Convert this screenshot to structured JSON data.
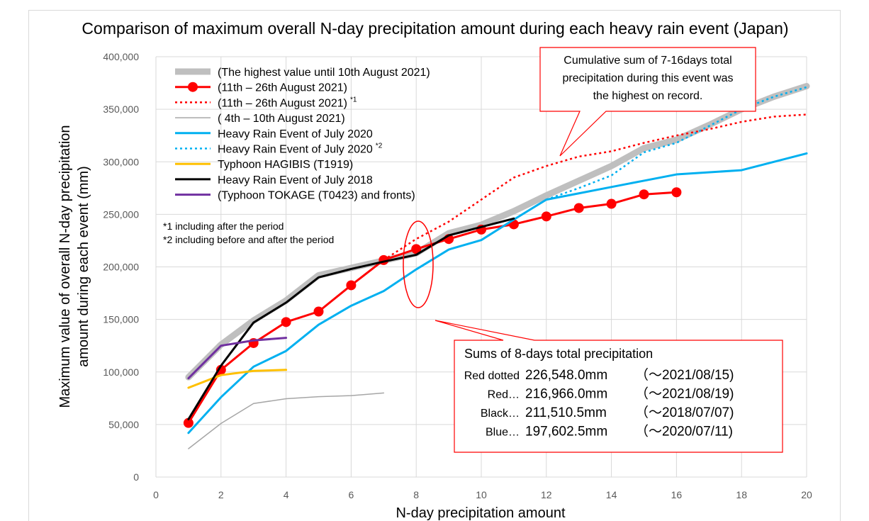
{
  "chart_data": {
    "type": "line",
    "title": "Comparison of maximum overall N-day precipitation amount during each heavy rain event (Japan)",
    "xlabel": "N-day precipitation amount",
    "ylabel_line1": "Maximum value of overall N-day precipitation",
    "ylabel_line2": "amount during each event (mm)",
    "xlim": [
      0,
      20
    ],
    "ylim": [
      0,
      400000
    ],
    "xticks": [
      0,
      2,
      4,
      6,
      8,
      10,
      12,
      14,
      16,
      18,
      20
    ],
    "yticks": [
      0,
      50000,
      100000,
      150000,
      200000,
      250000,
      300000,
      350000,
      400000
    ],
    "ytick_labels": [
      "0",
      "50,000",
      "100,000",
      "150,000",
      "200,000",
      "250,000",
      "300,000",
      "350,000",
      "400,000"
    ],
    "grid": true,
    "legend_position": "top-left",
    "series": [
      {
        "name": "(The highest value until 10th August 2021)",
        "color": "#bfbfbf",
        "style": "thick",
        "x": [
          1,
          2,
          3,
          4,
          5,
          6,
          7,
          8,
          9,
          10,
          11,
          12,
          13,
          14,
          15,
          16,
          17,
          18,
          19,
          20
        ],
        "y": [
          95000,
          126000,
          149000,
          168000,
          192000,
          199000,
          206000,
          213000,
          232000,
          240000,
          253000,
          268000,
          282000,
          296000,
          313000,
          321000,
          335000,
          350000,
          362000,
          372000
        ]
      },
      {
        "name": "(11th – 26th August 2021)",
        "color": "#ff0000",
        "style": "marker",
        "x": [
          1,
          2,
          3,
          4,
          5,
          6,
          7,
          8,
          9,
          10,
          11,
          12,
          13,
          14,
          15,
          16
        ],
        "y": [
          51500,
          102000,
          127500,
          147500,
          157500,
          182500,
          206500,
          216966,
          226500,
          235500,
          240500,
          248000,
          256000,
          260000,
          269000,
          271000
        ]
      },
      {
        "name": "(11th – 26th August 2021)",
        "sup": "*1",
        "color": "#ff0000",
        "style": "dotted",
        "x": [
          7,
          8,
          9,
          10,
          11,
          12,
          13,
          14,
          15,
          16,
          17,
          18,
          19,
          20
        ],
        "y": [
          206500,
          226548,
          243000,
          264000,
          285000,
          296000,
          305000,
          310000,
          318000,
          325000,
          331000,
          338000,
          343000,
          345000
        ]
      },
      {
        "name": "( 4th – 10th August 2021)",
        "color": "#a6a6a6",
        "style": "thin",
        "x": [
          1,
          2,
          3,
          4,
          5,
          6,
          7
        ],
        "y": [
          27000,
          51000,
          70000,
          74500,
          76500,
          77500,
          80000
        ]
      },
      {
        "name": "Heavy Rain Event of July 2020",
        "color": "#00b0f0",
        "style": "solid",
        "x": [
          1,
          2,
          3,
          4,
          5,
          6,
          7,
          8,
          9,
          10,
          11,
          12,
          13,
          14,
          15,
          16,
          18,
          20
        ],
        "y": [
          42000,
          76000,
          105000,
          120000,
          145000,
          163000,
          177000,
          197602.5,
          216500,
          225500,
          245000,
          264000,
          270000,
          276000,
          282000,
          288000,
          292000,
          308000
        ]
      },
      {
        "name": "Heavy Rain Event of July 2020",
        "sup": "*2",
        "color": "#00b0f0",
        "style": "dotted",
        "x": [
          12,
          13,
          14,
          15,
          16,
          17,
          18,
          19,
          20
        ],
        "y": [
          264000,
          275000,
          287000,
          309000,
          318000,
          334000,
          350000,
          362000,
          371000
        ]
      },
      {
        "name": "Typhoon HAGIBIS (T1919)",
        "color": "#ffc000",
        "style": "solid",
        "x": [
          1,
          2,
          3,
          4
        ],
        "y": [
          85000,
          97000,
          101000,
          102000
        ]
      },
      {
        "name": "Heavy Rain Event of July 2018",
        "color": "#000000",
        "style": "solid",
        "x": [
          1,
          2,
          3,
          4,
          5,
          6,
          7,
          8,
          9,
          10,
          11
        ],
        "y": [
          55000,
          106000,
          147000,
          166000,
          190000,
          198000,
          205000,
          211510.5,
          230000,
          238000,
          246000
        ]
      },
      {
        "name": "(Typhoon TOKAGE (T0423) and fronts)",
        "color": "#7030a0",
        "style": "solid",
        "x": [
          1,
          2,
          3,
          4
        ],
        "y": [
          94000,
          125000,
          130000,
          132500
        ]
      }
    ]
  },
  "notes": {
    "note1": "*1 including after the period",
    "note2": "*2 including before and after the period"
  },
  "callout": {
    "line1": "Cumulative sum of 7-16days total",
    "line2": "precipitation during this event was",
    "line3": "the highest on record."
  },
  "sums_box": {
    "heading": "Sums of 8-days total precipitation",
    "rows": [
      {
        "label": "Red dotted",
        "value": "226,548.0mm",
        "date": "（～2021/08/15)"
      },
      {
        "label": "Red…",
        "value": "216,966.0mm",
        "date": "（～2021/08/19)"
      },
      {
        "label": "Black…",
        "value": "211,510.5mm",
        "date": "（～2018/07/07)"
      },
      {
        "label": "Blue…",
        "value": "197,602.5mm",
        "date": "（～2020/07/11)"
      }
    ]
  }
}
